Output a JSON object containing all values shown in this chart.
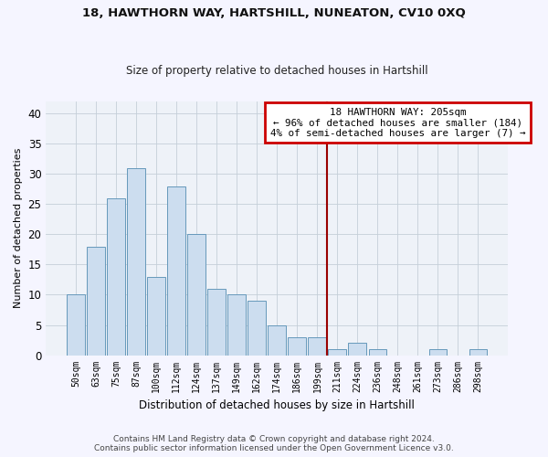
{
  "title1": "18, HAWTHORN WAY, HARTSHILL, NUNEATON, CV10 0XQ",
  "title2": "Size of property relative to detached houses in Hartshill",
  "xlabel": "Distribution of detached houses by size in Hartshill",
  "ylabel": "Number of detached properties",
  "footer1": "Contains HM Land Registry data © Crown copyright and database right 2024.",
  "footer2": "Contains public sector information licensed under the Open Government Licence v3.0.",
  "bar_labels": [
    "50sqm",
    "63sqm",
    "75sqm",
    "87sqm",
    "100sqm",
    "112sqm",
    "124sqm",
    "137sqm",
    "149sqm",
    "162sqm",
    "174sqm",
    "186sqm",
    "199sqm",
    "211sqm",
    "224sqm",
    "236sqm",
    "248sqm",
    "261sqm",
    "273sqm",
    "286sqm",
    "298sqm"
  ],
  "bar_values": [
    10,
    18,
    26,
    31,
    13,
    28,
    20,
    11,
    10,
    9,
    5,
    3,
    3,
    1,
    2,
    1,
    0,
    0,
    1,
    0,
    1
  ],
  "bar_color": "#ccddef",
  "bar_edge_color": "#6699bb",
  "grid_color": "#c5cfd8",
  "bg_color": "#eef2f8",
  "fig_color": "#f5f5ff",
  "annotation_text": "18 HAWTHORN WAY: 205sqm\n← 96% of detached houses are smaller (184)\n4% of semi-detached houses are larger (7) →",
  "annotation_box_color": "#ffffff",
  "annotation_border_color": "#cc0000",
  "vline_x": 12.5,
  "vline_color": "#990000",
  "ylim": [
    0,
    42
  ],
  "yticks": [
    0,
    5,
    10,
    15,
    20,
    25,
    30,
    35,
    40
  ]
}
